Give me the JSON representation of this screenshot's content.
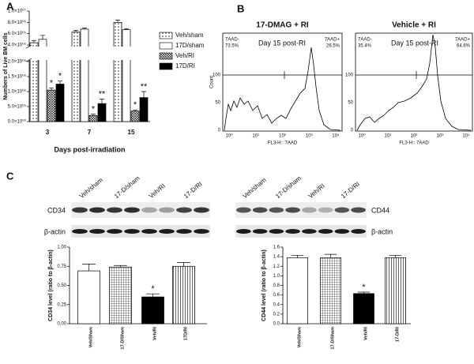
{
  "figure": {
    "panel_labels": [
      "A",
      "B",
      "C"
    ],
    "flow": {
      "y_label": "Count",
      "x_label": "FL3-H:: 7AAD",
      "yticks": [
        "0",
        "50",
        "100"
      ],
      "xticks": [
        "10⁰",
        "10¹",
        "10²",
        "10³",
        "10⁴"
      ],
      "annotation": "Day 15 post-RI",
      "panels": [
        {
          "title": "17-DMAG + RI",
          "gates": [
            {
              "label": "7AAD-",
              "value": "73.5%"
            },
            {
              "label": "7AAD+",
              "value": "26.5%"
            }
          ]
        },
        {
          "title": "Vehicle + RI",
          "gates": [
            {
              "label": "7AAD-",
              "value": "35.4%"
            },
            {
              "label": "7AAD+",
              "value": "64.6%"
            }
          ]
        }
      ]
    },
    "blots": [
      {
        "lanes": [
          "Veh/sham",
          "17-D/sham",
          "Veh/RI",
          "17-D/RI"
        ],
        "rows": [
          "CD34",
          "β-actin"
        ]
      },
      {
        "lanes": [
          "Veh/sham",
          "17-D/sham",
          "Veh/RI",
          "17-D/RI"
        ],
        "rows": [
          "CD44",
          "β-actin"
        ]
      }
    ]
  },
  "chart_data": [
    {
      "type": "bar",
      "y_label": "Numbers of Live BM cells",
      "x_label": "Days post-irradiation",
      "categories": [
        "3",
        "7",
        "15"
      ],
      "series": [
        {
          "name": "Veh/sham",
          "pattern": "dots",
          "values": [
            4400000,
            6300000,
            8000000
          ],
          "errors": [
            400000,
            300000,
            400000
          ]
        },
        {
          "name": "17D/sham",
          "pattern": "none",
          "values": [
            5000000,
            6800000,
            6700000
          ],
          "errors": [
            700000,
            200000,
            200000
          ]
        },
        {
          "name": "Veh/RI",
          "pattern": "crosshatch",
          "values": [
            1050000,
            200000,
            350000
          ],
          "errors": [
            70000,
            50000,
            40000
          ],
          "annotations": [
            "*",
            "*",
            "*"
          ]
        },
        {
          "name": "17D/RI",
          "pattern": "solid",
          "values": [
            1250000,
            600000,
            800000
          ],
          "errors": [
            100000,
            150000,
            200000
          ],
          "annotations": [
            "*",
            "**",
            "**"
          ]
        }
      ],
      "ylim": [
        0,
        10000000
      ],
      "y_break": [
        2000000,
        4000000
      ],
      "yticks": [
        {
          "value": 0,
          "label": "0.0×10⁰⁰"
        },
        {
          "value": 500000,
          "label": "5.0×10⁰⁵"
        },
        {
          "value": 1000000,
          "label": "1.0×10⁰⁶"
        },
        {
          "value": 1500000,
          "label": "1.5×10⁰⁶"
        },
        {
          "value": 2000000,
          "label": "2.0×10⁰⁶"
        },
        {
          "value": 4000000,
          "label": "4.0×10⁰⁶"
        },
        {
          "value": 6000000,
          "label": "6.0×10⁰⁶"
        },
        {
          "value": 8000000,
          "label": "8.0×10⁰⁶"
        },
        {
          "value": 10000000,
          "label": "1.0×10⁰⁷"
        }
      ],
      "legend": "right"
    },
    {
      "type": "bar",
      "y_label": "CD34 level (ratio to β-actin)",
      "categories": [
        "Veh/Sham",
        "17-D/Sham",
        "Veh/RI",
        "17D/RI"
      ],
      "series": [
        {
          "values": [
            0.69,
            0.74,
            0.35,
            0.75
          ],
          "errors": [
            0.09,
            0.02,
            0.04,
            0.05
          ],
          "patterns": [
            "none",
            "grid",
            "solid",
            "vstripes"
          ],
          "annotations": [
            null,
            null,
            "*",
            null
          ]
        }
      ],
      "ylim": [
        0,
        1
      ],
      "yticks": [
        {
          "value": 0,
          "label": "0.00"
        },
        {
          "value": 0.25,
          "label": "0.25"
        },
        {
          "value": 0.5,
          "label": "0.50"
        },
        {
          "value": 0.75,
          "label": "0.75"
        },
        {
          "value": 1,
          "label": "1.00"
        }
      ]
    },
    {
      "type": "bar",
      "y_label": "CD44 level (ratio to β-actin)",
      "categories": [
        "Veh/Sham",
        "17-D/Sham",
        "Veh/RI",
        "17-D/RI"
      ],
      "series": [
        {
          "values": [
            1.38,
            1.38,
            0.63,
            1.38
          ],
          "errors": [
            0.05,
            0.07,
            0.03,
            0.05
          ],
          "patterns": [
            "none",
            "grid",
            "solid",
            "vstripes"
          ],
          "annotations": [
            null,
            null,
            "*",
            null
          ]
        }
      ],
      "ylim": [
        0,
        1.6
      ],
      "yticks": [
        {
          "value": 0,
          "label": "0.0"
        },
        0.2,
        0.4,
        0.6,
        0.8,
        {
          "value": 1,
          "label": "1.0"
        },
        1.2,
        1.4,
        1.6
      ]
    }
  ]
}
